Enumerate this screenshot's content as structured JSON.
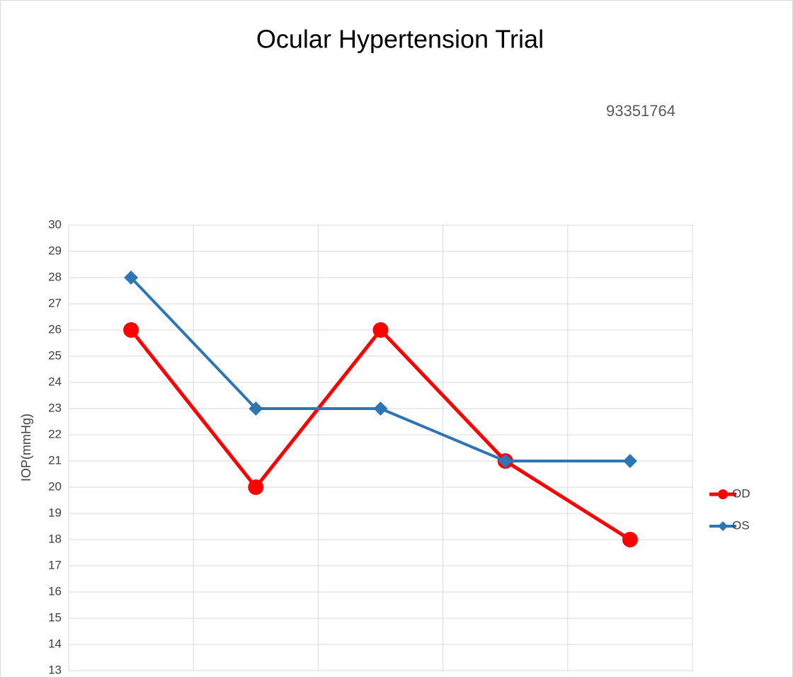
{
  "chart_data": {
    "type": "line",
    "title": "Ocular Hypertension Trial",
    "subtitle": "93351764",
    "y_label": "IOP(mmHg)",
    "categories": [
      null,
      null,
      null,
      null,
      null
    ],
    "series": [
      {
        "name": "OD",
        "color": "#ff0000",
        "marker": "circle",
        "values": [
          26,
          20,
          26,
          21,
          18
        ]
      },
      {
        "name": "OS",
        "color": "#2e75b6",
        "marker": "diamond",
        "values": [
          28,
          23,
          23,
          21,
          21
        ]
      }
    ],
    "ylim": [
      13,
      30
    ],
    "yticks": [
      13,
      14,
      15,
      16,
      17,
      18,
      19,
      20,
      21,
      22,
      23,
      24,
      25,
      26,
      27,
      28,
      29,
      30
    ],
    "grid": true,
    "legend": "right"
  }
}
